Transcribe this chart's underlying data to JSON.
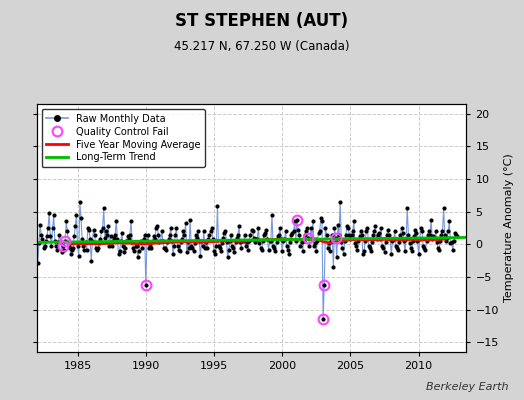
{
  "title": "ST STEPHEN (AUT)",
  "subtitle": "45.217 N, 67.250 W (Canada)",
  "ylabel": "Temperature Anomaly (°C)",
  "watermark": "Berkeley Earth",
  "xlim": [
    1982.0,
    2013.5
  ],
  "ylim": [
    -16.5,
    21.5
  ],
  "yticks": [
    -15,
    -10,
    -5,
    0,
    5,
    10,
    15,
    20
  ],
  "xticks": [
    1985,
    1990,
    1995,
    2000,
    2005,
    2010
  ],
  "fig_bg_color": "#d4d4d4",
  "plot_bg_color": "#ffffff",
  "raw_line_color": "#7799dd",
  "raw_dot_color": "#000000",
  "qc_fail_color": "#ff44ff",
  "moving_avg_color": "#ff0000",
  "trend_color": "#00bb00",
  "grid_color": "#cccccc",
  "raw_monthly": [
    [
      1982.083,
      -2.8
    ],
    [
      1982.167,
      0.2
    ],
    [
      1982.25,
      3.0
    ],
    [
      1982.333,
      1.5
    ],
    [
      1982.417,
      0.8
    ],
    [
      1982.5,
      -0.5
    ],
    [
      1982.583,
      -0.3
    ],
    [
      1982.667,
      0.5
    ],
    [
      1982.75,
      1.2
    ],
    [
      1982.833,
      2.5
    ],
    [
      1982.917,
      4.8
    ],
    [
      1983.0,
      1.2
    ],
    [
      1983.083,
      -0.3
    ],
    [
      1983.167,
      2.5
    ],
    [
      1983.25,
      4.5
    ],
    [
      1983.333,
      0.5
    ],
    [
      1983.417,
      -0.2
    ],
    [
      1983.5,
      -0.8
    ],
    [
      1983.583,
      0.3
    ],
    [
      1983.667,
      1.5
    ],
    [
      1983.75,
      0.3
    ],
    [
      1983.833,
      -1.2
    ],
    [
      1983.917,
      -0.3
    ],
    [
      1984.0,
      -0.8
    ],
    [
      1984.083,
      0.5
    ],
    [
      1984.167,
      3.5
    ],
    [
      1984.25,
      2.0
    ],
    [
      1984.333,
      -0.3
    ],
    [
      1984.417,
      -0.5
    ],
    [
      1984.5,
      -1.5
    ],
    [
      1984.583,
      -0.8
    ],
    [
      1984.667,
      -0.5
    ],
    [
      1984.75,
      1.2
    ],
    [
      1984.833,
      2.8
    ],
    [
      1984.917,
      4.5
    ],
    [
      1985.0,
      -0.3
    ],
    [
      1985.083,
      -1.8
    ],
    [
      1985.167,
      6.5
    ],
    [
      1985.25,
      4.0
    ],
    [
      1985.333,
      0.8
    ],
    [
      1985.417,
      -0.3
    ],
    [
      1985.5,
      -0.8
    ],
    [
      1985.583,
      0.3
    ],
    [
      1985.667,
      -0.8
    ],
    [
      1985.75,
      2.5
    ],
    [
      1985.833,
      2.2
    ],
    [
      1985.917,
      0.8
    ],
    [
      1986.0,
      -2.5
    ],
    [
      1986.083,
      0.5
    ],
    [
      1986.167,
      2.2
    ],
    [
      1986.25,
      1.5
    ],
    [
      1986.333,
      -0.5
    ],
    [
      1986.417,
      -0.8
    ],
    [
      1986.5,
      -0.5
    ],
    [
      1986.583,
      0.2
    ],
    [
      1986.667,
      0.8
    ],
    [
      1986.75,
      2.0
    ],
    [
      1986.833,
      2.5
    ],
    [
      1986.917,
      5.5
    ],
    [
      1987.0,
      1.0
    ],
    [
      1987.083,
      2.0
    ],
    [
      1987.167,
      1.5
    ],
    [
      1987.25,
      2.8
    ],
    [
      1987.333,
      -0.3
    ],
    [
      1987.417,
      1.2
    ],
    [
      1987.5,
      -0.3
    ],
    [
      1987.583,
      0.5
    ],
    [
      1987.667,
      1.0
    ],
    [
      1987.75,
      1.5
    ],
    [
      1987.833,
      3.5
    ],
    [
      1987.917,
      0.8
    ],
    [
      1988.0,
      -1.5
    ],
    [
      1988.083,
      -1.0
    ],
    [
      1988.167,
      0.5
    ],
    [
      1988.25,
      1.8
    ],
    [
      1988.333,
      -0.3
    ],
    [
      1988.417,
      -1.2
    ],
    [
      1988.5,
      -0.5
    ],
    [
      1988.583,
      0.5
    ],
    [
      1988.667,
      1.2
    ],
    [
      1988.75,
      0.8
    ],
    [
      1988.833,
      1.5
    ],
    [
      1988.917,
      3.5
    ],
    [
      1989.0,
      0.3
    ],
    [
      1989.083,
      -0.5
    ],
    [
      1989.167,
      -1.0
    ],
    [
      1989.25,
      -0.3
    ],
    [
      1989.333,
      -0.3
    ],
    [
      1989.417,
      -2.0
    ],
    [
      1989.5,
      -1.0
    ],
    [
      1989.583,
      0.3
    ],
    [
      1989.667,
      0.5
    ],
    [
      1989.75,
      -0.5
    ],
    [
      1989.833,
      0.8
    ],
    [
      1989.917,
      1.5
    ],
    [
      1990.0,
      -6.3
    ],
    [
      1990.083,
      0.5
    ],
    [
      1990.167,
      1.5
    ],
    [
      1990.25,
      -0.5
    ],
    [
      1990.333,
      -0.3
    ],
    [
      1990.417,
      -0.5
    ],
    [
      1990.5,
      0.5
    ],
    [
      1990.583,
      1.2
    ],
    [
      1990.667,
      0.8
    ],
    [
      1990.75,
      2.5
    ],
    [
      1990.833,
      2.8
    ],
    [
      1990.917,
      1.5
    ],
    [
      1991.0,
      0.3
    ],
    [
      1991.083,
      0.5
    ],
    [
      1991.167,
      2.0
    ],
    [
      1991.25,
      0.5
    ],
    [
      1991.333,
      -0.5
    ],
    [
      1991.417,
      -0.5
    ],
    [
      1991.5,
      -0.8
    ],
    [
      1991.583,
      0.3
    ],
    [
      1991.667,
      0.8
    ],
    [
      1991.75,
      1.5
    ],
    [
      1991.833,
      2.5
    ],
    [
      1991.917,
      0.5
    ],
    [
      1992.0,
      -1.5
    ],
    [
      1992.083,
      -0.3
    ],
    [
      1992.167,
      1.5
    ],
    [
      1992.25,
      2.5
    ],
    [
      1992.333,
      -0.3
    ],
    [
      1992.417,
      -0.8
    ],
    [
      1992.5,
      -1.0
    ],
    [
      1992.583,
      0.3
    ],
    [
      1992.667,
      0.8
    ],
    [
      1992.75,
      2.0
    ],
    [
      1992.833,
      1.5
    ],
    [
      1992.917,
      3.2
    ],
    [
      1993.0,
      -1.2
    ],
    [
      1993.083,
      0.3
    ],
    [
      1993.167,
      -0.5
    ],
    [
      1993.25,
      3.8
    ],
    [
      1993.333,
      -0.3
    ],
    [
      1993.417,
      -0.5
    ],
    [
      1993.5,
      -1.0
    ],
    [
      1993.583,
      0.2
    ],
    [
      1993.667,
      1.5
    ],
    [
      1993.75,
      1.0
    ],
    [
      1993.833,
      2.0
    ],
    [
      1993.917,
      0.5
    ],
    [
      1994.0,
      -1.8
    ],
    [
      1994.083,
      0.5
    ],
    [
      1994.167,
      -0.3
    ],
    [
      1994.25,
      2.0
    ],
    [
      1994.333,
      -0.5
    ],
    [
      1994.417,
      0.3
    ],
    [
      1994.5,
      -0.5
    ],
    [
      1994.583,
      0.8
    ],
    [
      1994.667,
      1.5
    ],
    [
      1994.75,
      2.0
    ],
    [
      1994.833,
      2.5
    ],
    [
      1994.917,
      0.8
    ],
    [
      1995.0,
      -1.0
    ],
    [
      1995.083,
      -1.5
    ],
    [
      1995.167,
      -0.3
    ],
    [
      1995.25,
      5.8
    ],
    [
      1995.333,
      -0.3
    ],
    [
      1995.417,
      -0.5
    ],
    [
      1995.5,
      -1.0
    ],
    [
      1995.583,
      0.2
    ],
    [
      1995.667,
      1.0
    ],
    [
      1995.75,
      1.8
    ],
    [
      1995.833,
      2.0
    ],
    [
      1995.917,
      0.3
    ],
    [
      1996.0,
      -2.0
    ],
    [
      1996.083,
      -0.8
    ],
    [
      1996.167,
      0.5
    ],
    [
      1996.25,
      1.5
    ],
    [
      1996.333,
      -0.3
    ],
    [
      1996.417,
      -0.5
    ],
    [
      1996.5,
      -1.2
    ],
    [
      1996.583,
      0.3
    ],
    [
      1996.667,
      1.0
    ],
    [
      1996.75,
      1.5
    ],
    [
      1996.833,
      2.8
    ],
    [
      1996.917,
      0.3
    ],
    [
      1997.0,
      -0.5
    ],
    [
      1997.083,
      0.5
    ],
    [
      1997.167,
      0.5
    ],
    [
      1997.25,
      1.5
    ],
    [
      1997.333,
      -0.3
    ],
    [
      1997.417,
      0.3
    ],
    [
      1997.5,
      -0.8
    ],
    [
      1997.583,
      0.5
    ],
    [
      1997.667,
      1.5
    ],
    [
      1997.75,
      2.2
    ],
    [
      1997.833,
      2.0
    ],
    [
      1997.917,
      1.0
    ],
    [
      1998.0,
      0.3
    ],
    [
      1998.083,
      0.8
    ],
    [
      1998.167,
      0.8
    ],
    [
      1998.25,
      2.5
    ],
    [
      1998.333,
      0.2
    ],
    [
      1998.417,
      -0.5
    ],
    [
      1998.5,
      -0.8
    ],
    [
      1998.583,
      0.5
    ],
    [
      1998.667,
      1.5
    ],
    [
      1998.75,
      1.8
    ],
    [
      1998.833,
      2.2
    ],
    [
      1998.917,
      0.8
    ],
    [
      1999.0,
      -0.8
    ],
    [
      1999.083,
      0.5
    ],
    [
      1999.167,
      0.5
    ],
    [
      1999.25,
      4.5
    ],
    [
      1999.333,
      -0.3
    ],
    [
      1999.417,
      -0.5
    ],
    [
      1999.5,
      -1.0
    ],
    [
      1999.583,
      0.3
    ],
    [
      1999.667,
      1.2
    ],
    [
      1999.75,
      1.5
    ],
    [
      1999.833,
      2.5
    ],
    [
      1999.917,
      0.8
    ],
    [
      2000.0,
      -1.0
    ],
    [
      2000.083,
      0.5
    ],
    [
      2000.167,
      0.8
    ],
    [
      2000.25,
      2.0
    ],
    [
      2000.333,
      -0.3
    ],
    [
      2000.417,
      -0.8
    ],
    [
      2000.5,
      -1.5
    ],
    [
      2000.583,
      0.3
    ],
    [
      2000.667,
      1.5
    ],
    [
      2000.75,
      1.8
    ],
    [
      2000.833,
      2.0
    ],
    [
      2000.917,
      3.5
    ],
    [
      2001.0,
      0.5
    ],
    [
      2001.083,
      3.8
    ],
    [
      2001.167,
      2.2
    ],
    [
      2001.25,
      1.5
    ],
    [
      2001.333,
      -0.3
    ],
    [
      2001.417,
      0.3
    ],
    [
      2001.5,
      -1.0
    ],
    [
      2001.583,
      0.5
    ],
    [
      2001.667,
      1.5
    ],
    [
      2001.75,
      2.0
    ],
    [
      2001.833,
      2.5
    ],
    [
      2001.917,
      1.0
    ],
    [
      2002.0,
      -0.3
    ],
    [
      2002.083,
      2.5
    ],
    [
      2002.167,
      0.8
    ],
    [
      2002.25,
      3.5
    ],
    [
      2002.333,
      -0.3
    ],
    [
      2002.417,
      0.2
    ],
    [
      2002.5,
      -1.0
    ],
    [
      2002.583,
      0.5
    ],
    [
      2002.667,
      1.8
    ],
    [
      2002.75,
      2.0
    ],
    [
      2002.833,
      4.0
    ],
    [
      2002.917,
      3.5
    ],
    [
      2003.0,
      -11.5
    ],
    [
      2003.083,
      -6.3
    ],
    [
      2003.167,
      2.5
    ],
    [
      2003.25,
      1.5
    ],
    [
      2003.333,
      -0.5
    ],
    [
      2003.417,
      0.2
    ],
    [
      2003.5,
      -1.0
    ],
    [
      2003.583,
      0.5
    ],
    [
      2003.667,
      1.5
    ],
    [
      2003.75,
      -3.5
    ],
    [
      2003.833,
      2.5
    ],
    [
      2003.917,
      1.0
    ],
    [
      2004.0,
      -2.0
    ],
    [
      2004.083,
      3.0
    ],
    [
      2004.167,
      1.5
    ],
    [
      2004.25,
      6.5
    ],
    [
      2004.333,
      0.3
    ],
    [
      2004.417,
      -0.5
    ],
    [
      2004.5,
      -1.5
    ],
    [
      2004.583,
      0.5
    ],
    [
      2004.667,
      1.5
    ],
    [
      2004.75,
      2.8
    ],
    [
      2004.833,
      2.5
    ],
    [
      2004.917,
      1.5
    ],
    [
      2005.0,
      0.8
    ],
    [
      2005.083,
      1.5
    ],
    [
      2005.167,
      2.0
    ],
    [
      2005.25,
      3.5
    ],
    [
      2005.333,
      0.2
    ],
    [
      2005.417,
      -0.3
    ],
    [
      2005.5,
      -0.8
    ],
    [
      2005.583,
      0.5
    ],
    [
      2005.667,
      1.2
    ],
    [
      2005.75,
      2.0
    ],
    [
      2005.833,
      1.5
    ],
    [
      2005.917,
      -1.5
    ],
    [
      2006.0,
      -1.0
    ],
    [
      2006.083,
      0.5
    ],
    [
      2006.167,
      2.0
    ],
    [
      2006.25,
      2.5
    ],
    [
      2006.333,
      -0.3
    ],
    [
      2006.417,
      -0.5
    ],
    [
      2006.5,
      -1.0
    ],
    [
      2006.583,
      0.3
    ],
    [
      2006.667,
      1.5
    ],
    [
      2006.75,
      2.0
    ],
    [
      2006.833,
      2.8
    ],
    [
      2006.917,
      0.8
    ],
    [
      2007.0,
      1.5
    ],
    [
      2007.083,
      1.8
    ],
    [
      2007.167,
      0.8
    ],
    [
      2007.25,
      2.5
    ],
    [
      2007.333,
      -0.3
    ],
    [
      2007.417,
      -0.5
    ],
    [
      2007.5,
      -1.2
    ],
    [
      2007.583,
      0.3
    ],
    [
      2007.667,
      1.5
    ],
    [
      2007.75,
      2.2
    ],
    [
      2007.833,
      1.5
    ],
    [
      2007.917,
      0.8
    ],
    [
      2008.0,
      -1.5
    ],
    [
      2008.083,
      0.5
    ],
    [
      2008.167,
      0.8
    ],
    [
      2008.25,
      2.0
    ],
    [
      2008.333,
      -0.3
    ],
    [
      2008.417,
      -0.5
    ],
    [
      2008.5,
      -0.8
    ],
    [
      2008.583,
      0.3
    ],
    [
      2008.667,
      1.5
    ],
    [
      2008.75,
      2.5
    ],
    [
      2008.833,
      1.8
    ],
    [
      2008.917,
      0.5
    ],
    [
      2009.0,
      -1.0
    ],
    [
      2009.083,
      0.8
    ],
    [
      2009.167,
      5.5
    ],
    [
      2009.25,
      1.5
    ],
    [
      2009.333,
      0.2
    ],
    [
      2009.417,
      -0.5
    ],
    [
      2009.5,
      -1.0
    ],
    [
      2009.583,
      0.5
    ],
    [
      2009.667,
      1.2
    ],
    [
      2009.75,
      2.2
    ],
    [
      2009.833,
      1.8
    ],
    [
      2009.917,
      0.5
    ],
    [
      2010.0,
      -1.5
    ],
    [
      2010.083,
      0.8
    ],
    [
      2010.167,
      2.5
    ],
    [
      2010.25,
      2.0
    ],
    [
      2010.333,
      -0.3
    ],
    [
      2010.417,
      -0.5
    ],
    [
      2010.5,
      -0.8
    ],
    [
      2010.583,
      0.5
    ],
    [
      2010.667,
      1.5
    ],
    [
      2010.75,
      2.0
    ],
    [
      2010.833,
      1.5
    ],
    [
      2010.917,
      3.8
    ],
    [
      2011.0,
      0.8
    ],
    [
      2011.083,
      1.2
    ],
    [
      2011.167,
      1.0
    ],
    [
      2011.25,
      2.0
    ],
    [
      2011.333,
      0.3
    ],
    [
      2011.417,
      -0.5
    ],
    [
      2011.5,
      -0.8
    ],
    [
      2011.583,
      0.5
    ],
    [
      2011.667,
      1.5
    ],
    [
      2011.75,
      2.0
    ],
    [
      2011.833,
      5.5
    ],
    [
      2011.917,
      1.5
    ],
    [
      2012.0,
      0.5
    ],
    [
      2012.083,
      1.0
    ],
    [
      2012.167,
      2.0
    ],
    [
      2012.25,
      3.5
    ],
    [
      2012.333,
      0.2
    ],
    [
      2012.417,
      0.3
    ],
    [
      2012.5,
      -0.8
    ],
    [
      2012.583,
      0.5
    ],
    [
      2012.667,
      1.8
    ],
    [
      2012.75,
      1.5
    ],
    [
      2012.833,
      1.2
    ]
  ],
  "qc_fail_points": [
    [
      1983.917,
      -0.3
    ],
    [
      1984.083,
      0.5
    ],
    [
      1990.0,
      -6.3
    ],
    [
      2001.083,
      3.8
    ],
    [
      2001.917,
      1.0
    ],
    [
      2003.0,
      -11.5
    ],
    [
      2003.083,
      -6.3
    ],
    [
      2003.917,
      1.0
    ]
  ],
  "moving_avg": [
    [
      1984.5,
      0.05
    ],
    [
      1985.0,
      0.1
    ],
    [
      1985.5,
      0.12
    ],
    [
      1986.0,
      0.1
    ],
    [
      1986.5,
      0.08
    ],
    [
      1987.0,
      0.12
    ],
    [
      1987.5,
      0.18
    ],
    [
      1988.0,
      0.22
    ],
    [
      1988.5,
      0.2
    ],
    [
      1989.0,
      0.15
    ],
    [
      1989.5,
      0.08
    ],
    [
      1990.0,
      0.1
    ],
    [
      1990.5,
      0.15
    ],
    [
      1991.0,
      0.22
    ],
    [
      1991.5,
      0.28
    ],
    [
      1992.0,
      0.32
    ],
    [
      1992.5,
      0.38
    ],
    [
      1993.0,
      0.42
    ],
    [
      1993.5,
      0.38
    ],
    [
      1994.0,
      0.35
    ],
    [
      1994.5,
      0.38
    ],
    [
      1995.0,
      0.42
    ],
    [
      1995.5,
      0.48
    ],
    [
      1996.0,
      0.52
    ],
    [
      1996.5,
      0.48
    ],
    [
      1997.0,
      0.45
    ],
    [
      1997.5,
      0.52
    ],
    [
      1998.0,
      0.6
    ],
    [
      1998.5,
      0.65
    ],
    [
      1999.0,
      0.7
    ],
    [
      1999.5,
      0.75
    ],
    [
      2000.0,
      0.8
    ],
    [
      2000.5,
      0.78
    ],
    [
      2001.0,
      0.75
    ],
    [
      2001.5,
      0.78
    ],
    [
      2002.0,
      0.82
    ],
    [
      2002.5,
      0.85
    ],
    [
      2003.0,
      0.4
    ],
    [
      2003.5,
      0.2
    ],
    [
      2004.0,
      0.35
    ],
    [
      2004.5,
      0.55
    ],
    [
      2005.0,
      0.7
    ],
    [
      2005.5,
      0.75
    ],
    [
      2006.0,
      0.72
    ],
    [
      2006.5,
      0.68
    ],
    [
      2007.0,
      0.72
    ],
    [
      2007.5,
      0.75
    ],
    [
      2008.0,
      0.72
    ],
    [
      2008.5,
      0.68
    ],
    [
      2009.0,
      0.72
    ],
    [
      2009.5,
      0.75
    ],
    [
      2010.0,
      0.72
    ],
    [
      2010.5,
      0.68
    ],
    [
      2011.0,
      0.72
    ],
    [
      2011.5,
      0.75
    ],
    [
      2012.0,
      0.8
    ]
  ],
  "trend_line": [
    [
      1982.0,
      0.3
    ],
    [
      2013.5,
      1.05
    ]
  ]
}
